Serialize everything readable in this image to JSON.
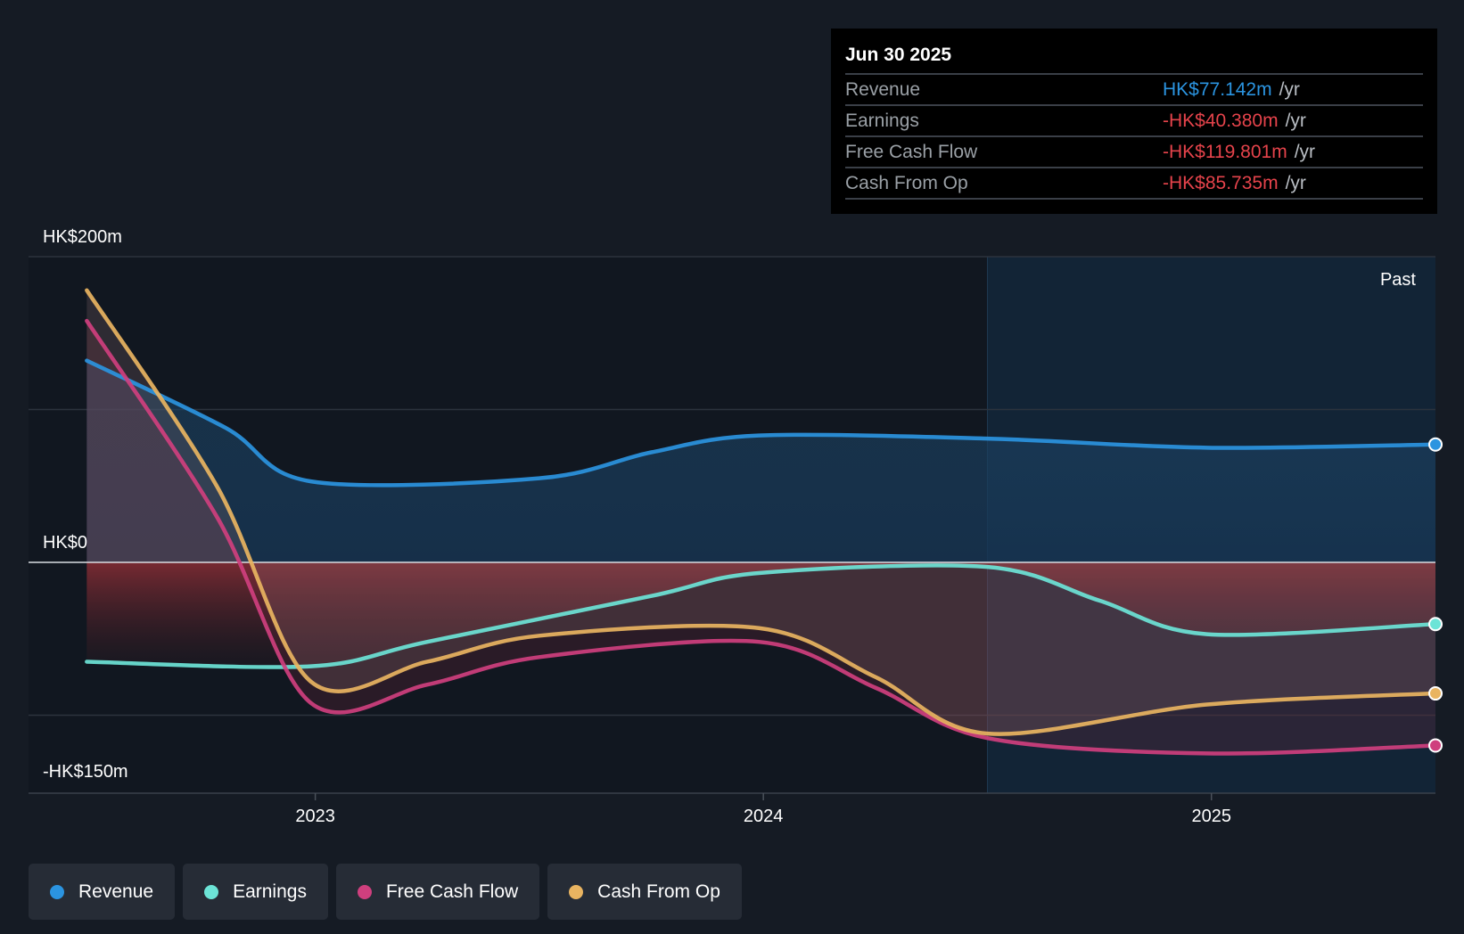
{
  "chart_data": {
    "type": "line",
    "y_axis_labels": {
      "top": "HK$200m",
      "zero": "HK$0",
      "bottom": "-HK$150m"
    },
    "ylim": [
      -150,
      200
    ],
    "x_ticks": [
      {
        "label": "2023",
        "x": 2023.0
      },
      {
        "label": "2024",
        "x": 2024.0
      },
      {
        "label": "2025",
        "x": 2025.0
      }
    ],
    "xlim": [
      2022.36,
      2025.5
    ],
    "past_start": 2024.5,
    "past_label": "Past",
    "series": [
      {
        "name": "Revenue",
        "color": "#2b94e0",
        "points": [
          [
            2022.49,
            132
          ],
          [
            2022.8,
            88
          ],
          [
            2022.99,
            53
          ],
          [
            2023.5,
            55
          ],
          [
            2023.75,
            72
          ],
          [
            2023.99,
            83
          ],
          [
            2024.5,
            81
          ],
          [
            2024.99,
            75
          ],
          [
            2025.5,
            77.142
          ]
        ]
      },
      {
        "name": "Earnings",
        "color": "#6ce4d7",
        "points": [
          [
            2022.49,
            -65
          ],
          [
            2022.99,
            -68
          ],
          [
            2023.25,
            -52
          ],
          [
            2023.75,
            -22
          ],
          [
            2023.99,
            -7
          ],
          [
            2024.5,
            -3
          ],
          [
            2024.75,
            -25
          ],
          [
            2024.99,
            -47
          ],
          [
            2025.5,
            -40.38
          ]
        ]
      },
      {
        "name": "Free Cash Flow",
        "color": "#cf3f7e",
        "points": [
          [
            2022.49,
            158
          ],
          [
            2022.78,
            30
          ],
          [
            2022.99,
            -92
          ],
          [
            2023.25,
            -80
          ],
          [
            2023.5,
            -62
          ],
          [
            2023.99,
            -52
          ],
          [
            2024.25,
            -82
          ],
          [
            2024.5,
            -115
          ],
          [
            2024.99,
            -125
          ],
          [
            2025.5,
            -119.801
          ]
        ]
      },
      {
        "name": "Cash From Op",
        "color": "#e9b461",
        "points": [
          [
            2022.49,
            178
          ],
          [
            2022.78,
            50
          ],
          [
            2022.99,
            -78
          ],
          [
            2023.25,
            -65
          ],
          [
            2023.5,
            -48
          ],
          [
            2023.99,
            -43
          ],
          [
            2024.25,
            -75
          ],
          [
            2024.5,
            -112
          ],
          [
            2024.99,
            -93
          ],
          [
            2025.5,
            -85.735
          ]
        ]
      }
    ]
  },
  "tooltip": {
    "date": "Jun 30 2025",
    "rows": [
      {
        "label": "Revenue",
        "value": "HK$77.142m",
        "unit": "/yr",
        "color": "#2b94e0"
      },
      {
        "label": "Earnings",
        "value": "-HK$40.380m",
        "unit": "/yr",
        "color": "#e5434b"
      },
      {
        "label": "Free Cash Flow",
        "value": "-HK$119.801m",
        "unit": "/yr",
        "color": "#e5434b"
      },
      {
        "label": "Cash From Op",
        "value": "-HK$85.735m",
        "unit": "/yr",
        "color": "#e5434b"
      }
    ]
  },
  "legend": [
    {
      "label": "Revenue",
      "color": "#2b94e0"
    },
    {
      "label": "Earnings",
      "color": "#6ce4d7"
    },
    {
      "label": "Free Cash Flow",
      "color": "#cf3f7e"
    },
    {
      "label": "Cash From Op",
      "color": "#e9b461"
    }
  ]
}
